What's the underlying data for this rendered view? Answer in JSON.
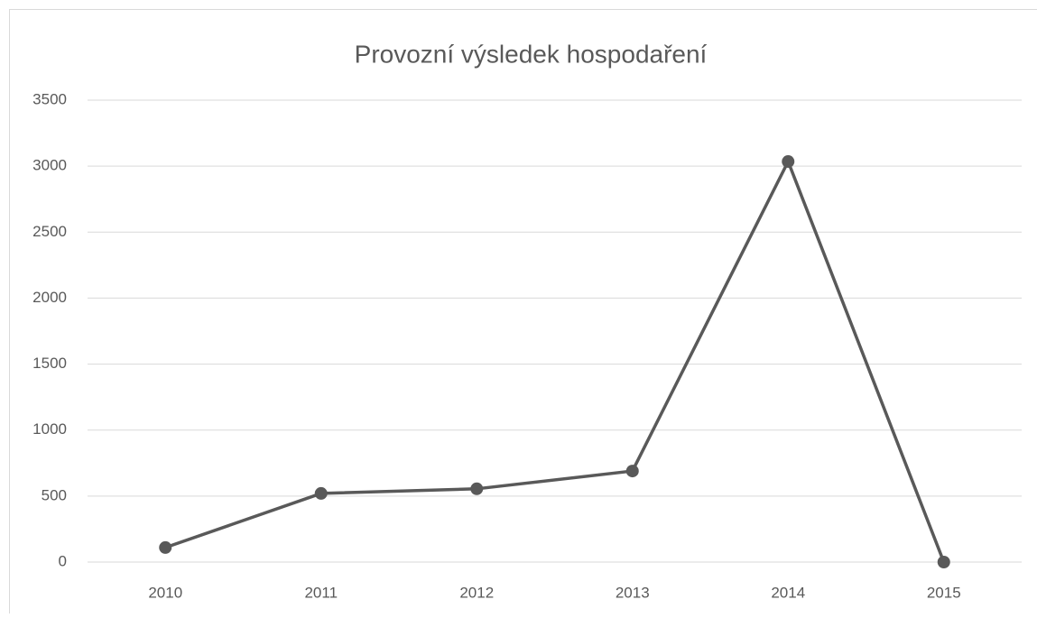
{
  "chart_data": {
    "type": "line",
    "title": "Provozní výsledek hospodaření",
    "categories": [
      "2010",
      "2011",
      "2012",
      "2013",
      "2014",
      "2015"
    ],
    "values": [
      110,
      520,
      555,
      690,
      3035,
      0
    ],
    "color": "#595959",
    "ylim": [
      0,
      3500
    ],
    "yticks": [
      0,
      500,
      1000,
      1500,
      2000,
      2500,
      3000,
      3500
    ],
    "grid": true
  }
}
